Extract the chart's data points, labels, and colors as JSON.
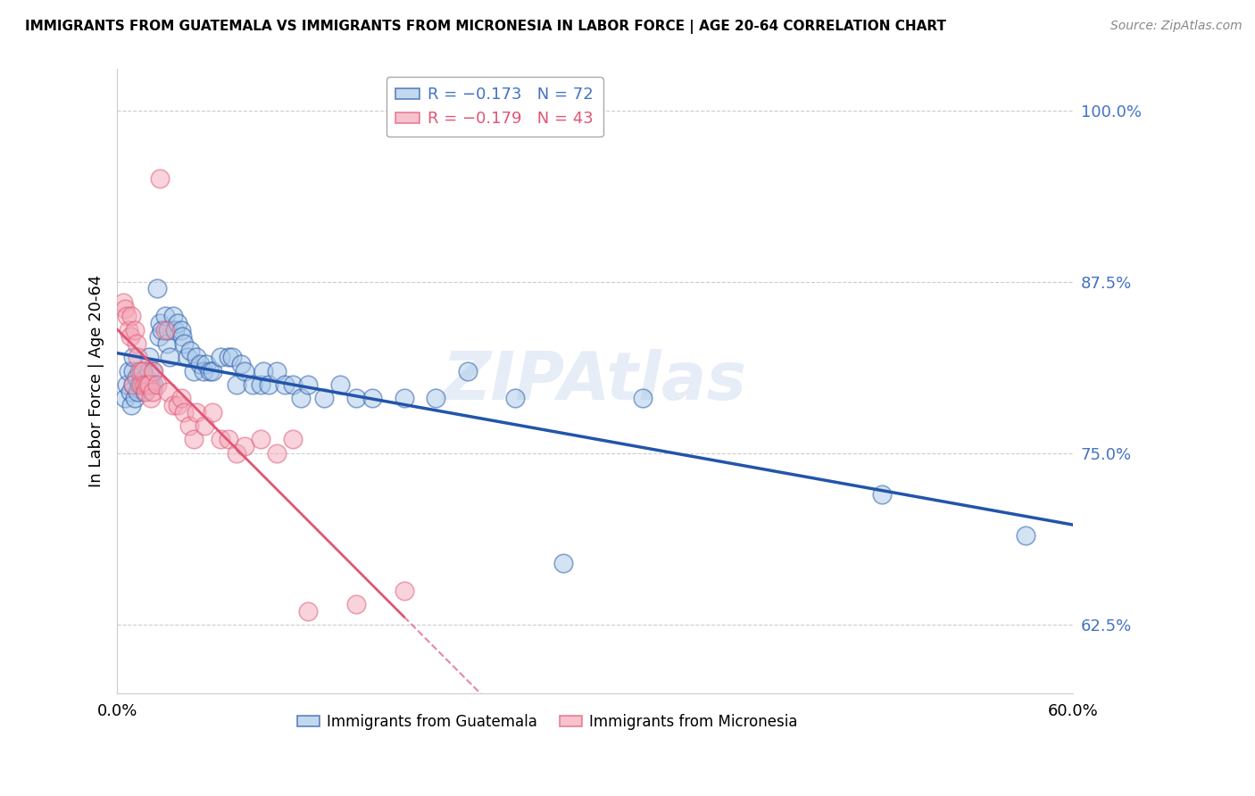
{
  "title": "IMMIGRANTS FROM GUATEMALA VS IMMIGRANTS FROM MICRONESIA IN LABOR FORCE | AGE 20-64 CORRELATION CHART",
  "source": "Source: ZipAtlas.com",
  "ylabel": "In Labor Force | Age 20-64",
  "ylabel_tick_vals": [
    1.0,
    0.875,
    0.75,
    0.625
  ],
  "ylabel_tick_labels": [
    "100.0%",
    "87.5%",
    "75.0%",
    "62.5%"
  ],
  "xlim": [
    0.0,
    0.6
  ],
  "ylim": [
    0.575,
    1.03
  ],
  "watermark": "ZIPAtlas",
  "legend_labels": [
    "Immigrants from Guatemala",
    "Immigrants from Micronesia"
  ],
  "guatemala_color": "#a8c8e8",
  "micronesia_color": "#f4a8b8",
  "guatemala_line_color": "#2255aa",
  "micronesia_line_color": "#e05575",
  "guatemala_R": -0.173,
  "guatemala_N": 72,
  "micronesia_R": -0.179,
  "micronesia_N": 43,
  "guatemala_x": [
    0.005,
    0.006,
    0.007,
    0.008,
    0.009,
    0.01,
    0.01,
    0.01,
    0.011,
    0.012,
    0.013,
    0.014,
    0.015,
    0.016,
    0.017,
    0.018,
    0.019,
    0.02,
    0.02,
    0.021,
    0.022,
    0.023,
    0.025,
    0.026,
    0.027,
    0.028,
    0.03,
    0.031,
    0.032,
    0.033,
    0.035,
    0.036,
    0.038,
    0.04,
    0.041,
    0.042,
    0.044,
    0.046,
    0.048,
    0.05,
    0.052,
    0.054,
    0.056,
    0.058,
    0.06,
    0.065,
    0.07,
    0.072,
    0.075,
    0.078,
    0.08,
    0.085,
    0.09,
    0.092,
    0.095,
    0.1,
    0.105,
    0.11,
    0.115,
    0.12,
    0.13,
    0.14,
    0.15,
    0.16,
    0.18,
    0.2,
    0.22,
    0.25,
    0.28,
    0.33,
    0.48,
    0.57
  ],
  "guatemala_y": [
    0.79,
    0.8,
    0.81,
    0.795,
    0.785,
    0.8,
    0.81,
    0.82,
    0.79,
    0.805,
    0.795,
    0.8,
    0.81,
    0.8,
    0.795,
    0.805,
    0.8,
    0.81,
    0.82,
    0.8,
    0.81,
    0.8,
    0.87,
    0.835,
    0.845,
    0.84,
    0.85,
    0.83,
    0.84,
    0.82,
    0.85,
    0.84,
    0.845,
    0.84,
    0.835,
    0.83,
    0.82,
    0.825,
    0.81,
    0.82,
    0.815,
    0.81,
    0.815,
    0.81,
    0.81,
    0.82,
    0.82,
    0.82,
    0.8,
    0.815,
    0.81,
    0.8,
    0.8,
    0.81,
    0.8,
    0.81,
    0.8,
    0.8,
    0.79,
    0.8,
    0.79,
    0.8,
    0.79,
    0.79,
    0.79,
    0.79,
    0.81,
    0.79,
    0.67,
    0.79,
    0.72,
    0.69
  ],
  "micronesia_x": [
    0.004,
    0.005,
    0.006,
    0.007,
    0.008,
    0.009,
    0.01,
    0.011,
    0.012,
    0.013,
    0.014,
    0.015,
    0.016,
    0.017,
    0.018,
    0.019,
    0.02,
    0.021,
    0.022,
    0.023,
    0.025,
    0.027,
    0.03,
    0.032,
    0.035,
    0.038,
    0.04,
    0.042,
    0.045,
    0.048,
    0.05,
    0.055,
    0.06,
    0.065,
    0.07,
    0.075,
    0.08,
    0.09,
    0.1,
    0.11,
    0.12,
    0.15,
    0.18
  ],
  "micronesia_y": [
    0.86,
    0.855,
    0.85,
    0.84,
    0.835,
    0.85,
    0.8,
    0.84,
    0.83,
    0.82,
    0.81,
    0.8,
    0.81,
    0.8,
    0.795,
    0.8,
    0.8,
    0.79,
    0.795,
    0.81,
    0.8,
    0.95,
    0.84,
    0.795,
    0.785,
    0.785,
    0.79,
    0.78,
    0.77,
    0.76,
    0.78,
    0.77,
    0.78,
    0.76,
    0.76,
    0.75,
    0.755,
    0.76,
    0.75,
    0.76,
    0.635,
    0.64,
    0.65
  ]
}
